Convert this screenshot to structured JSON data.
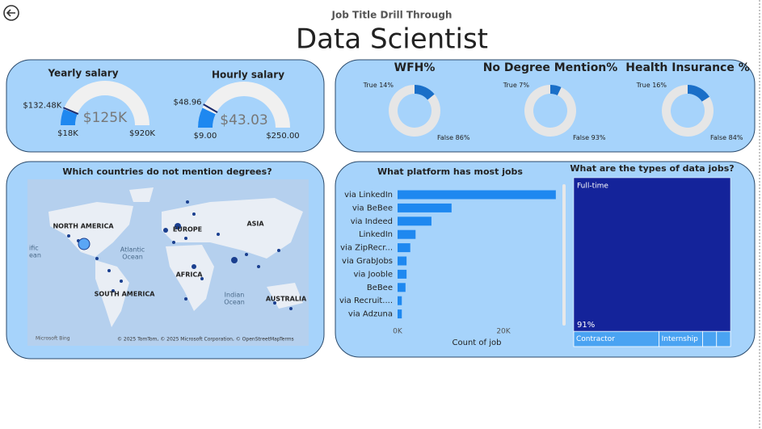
{
  "header": {
    "subtitle": "Job Title Drill Through",
    "title": "Data Scientist"
  },
  "gauges": [
    {
      "title": "Yearly salary",
      "min": {
        "value": 18000,
        "label": "$18K"
      },
      "max": {
        "value": 920000,
        "label": "$920K"
      },
      "value": {
        "value": 125000,
        "label": "$125K"
      },
      "target": {
        "value": 132480,
        "label": "$132.48K"
      }
    },
    {
      "title": "Hourly salary",
      "min": {
        "value": 9,
        "label": "$9.00"
      },
      "max": {
        "value": 250,
        "label": "$250.00"
      },
      "value": {
        "value": 43.03,
        "label": "$43.03"
      },
      "target": {
        "value": 48.96,
        "label": "$48.96"
      }
    }
  ],
  "donuts": [
    {
      "title": "WFH%",
      "slices": [
        {
          "name": "True",
          "value": 14,
          "label": "14%"
        },
        {
          "name": "False",
          "value": 86,
          "label": "86%"
        }
      ]
    },
    {
      "title": "No Degree Mention%",
      "slices": [
        {
          "name": "True",
          "value": 7,
          "label": "7%"
        },
        {
          "name": "False",
          "value": 93,
          "label": "93%"
        }
      ]
    },
    {
      "title": "Health Insurance %",
      "slices": [
        {
          "name": "True",
          "value": 16,
          "label": "16%"
        },
        {
          "name": "False",
          "value": 84,
          "label": "84%"
        }
      ]
    }
  ],
  "map": {
    "title": "Which countries do not mention degrees?",
    "labels": [
      "NORTH AMERICA",
      "EUROPE",
      "ASIA",
      "Atlantic",
      "Ocean",
      "AFRICA",
      "SOUTH AMERICA",
      "Indian",
      "Ocean",
      "AUSTRALIA",
      "ific",
      "ean"
    ],
    "attribution": "Microsoft Bing",
    "credits": "© 2025 TomTom, © 2025 Microsoft Corporation, © OpenStreetMap",
    "terms": "Terms"
  },
  "bar_chart": {
    "type": "bar",
    "title": "What platform has most jobs",
    "categories": [
      "via LinkedIn",
      "via BeBee",
      "via Indeed",
      "LinkedIn",
      "via ZipRecr...",
      "via GrabJobs",
      "via Jooble",
      "BeBee",
      "via Recruit....",
      "via Adzuna"
    ],
    "values": [
      29900,
      10200,
      6400,
      3400,
      2400,
      1700,
      1700,
      1500,
      800,
      800
    ],
    "color": "#1e88f0",
    "xlim": [
      0,
      30000
    ],
    "xticks": [
      {
        "value": 0,
        "label": "0K"
      },
      {
        "value": 20000,
        "label": "20K"
      }
    ],
    "xlabel": "Count of job"
  },
  "treemap": {
    "type": "treemap",
    "title": "What are the types of data jobs?",
    "items": [
      {
        "name": "Full-time",
        "value": 91,
        "label": "91%"
      },
      {
        "name": "Contractor",
        "value": 4.9
      },
      {
        "name": "Internship",
        "value": 2.5
      },
      {
        "name": null,
        "value": 0.8
      },
      {
        "name": null,
        "value": 0.8
      }
    ]
  }
}
